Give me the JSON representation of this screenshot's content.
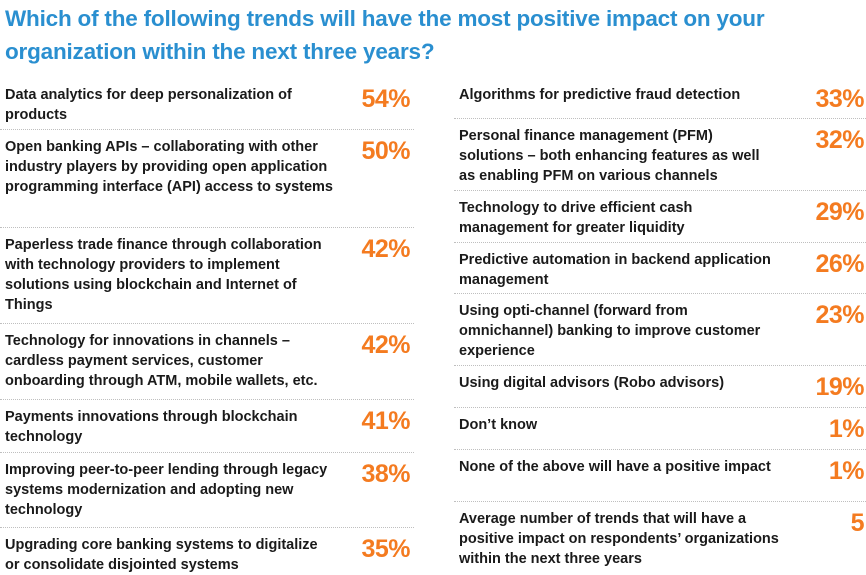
{
  "chart_data": {
    "type": "table",
    "title": "Which of the following trends will have the most positive impact on your organization within the next three years?",
    "columns": [
      {
        "rows": [
          {
            "label": "Data analytics for deep personalization of products",
            "value": "54%"
          },
          {
            "label": "Open banking APIs – collaborating with other industry players by providing open application programming interface (API) access to systems",
            "value": "50%"
          },
          {
            "label": "Paperless trade finance through collaboration with technology providers to implement solutions using blockchain and Internet of Things",
            "value": "42%"
          },
          {
            "label": "Technology for innovations in channels – cardless payment services, customer onboarding through ATM, mobile wallets, etc.",
            "value": "42%"
          },
          {
            "label": "Payments innovations through blockchain technology",
            "value": "41%"
          },
          {
            "label": "Improving peer-to-peer lending through legacy systems modernization and adopting new technology",
            "value": "38%"
          },
          {
            "label": "Upgrading core banking systems to digitalize or consolidate disjointed systems",
            "value": "35%"
          }
        ]
      },
      {
        "rows": [
          {
            "label": "Algorithms for predictive fraud detection",
            "value": "33%"
          },
          {
            "label": "Personal finance management (PFM) solutions – both enhancing features as well as enabling PFM on various channels",
            "value": "32%"
          },
          {
            "label": "Technology to drive efficient cash management for greater liquidity",
            "value": "29%"
          },
          {
            "label": "Predictive automation in backend application management",
            "value": "26%"
          },
          {
            "label": "Using opti-channel (forward from omnichannel) banking to improve customer experience",
            "value": "23%"
          },
          {
            "label": "Using digital advisors (Robo advisors)",
            "value": "19%"
          },
          {
            "label": "Don’t know",
            "value": "1%"
          },
          {
            "label": "None of the above will have a positive impact",
            "value": "1%"
          },
          {
            "label": "Average number of trends that will have a positive impact on respondents’ organizations within the next three years",
            "value": "5"
          }
        ]
      }
    ],
    "colors": {
      "title": "#2a8fd0",
      "value": "#f47b20",
      "label": "#1a1a1a"
    }
  }
}
